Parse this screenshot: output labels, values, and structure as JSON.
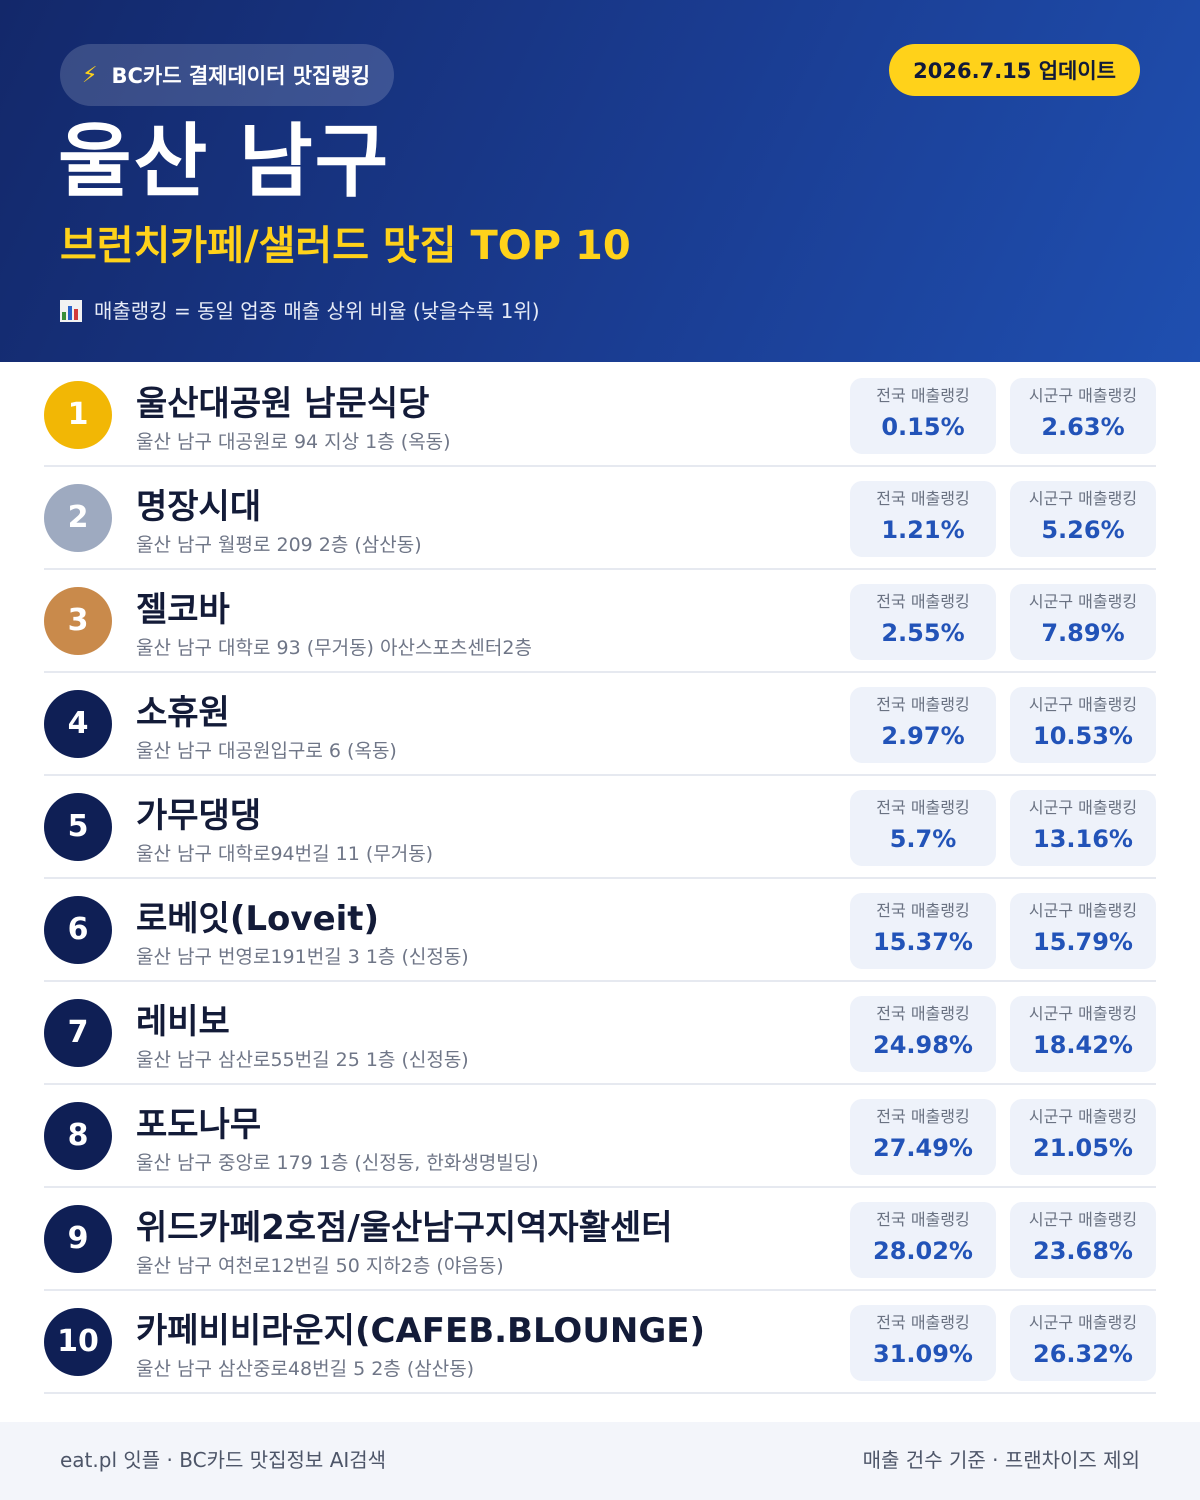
{
  "header": {
    "badge": "BC카드 결제데이터 맛집랭킹",
    "update": "2026.7.15 업데이트",
    "city": "울산 남구",
    "subtitle": "브런치카페/샐러드 맛집 TOP 10",
    "note": "매출랭킹 = 동일 업종 매출 상위 비율 (낮을수록 1위)",
    "badge_icon": "lightning-icon",
    "note_icon": "bar-chart-icon"
  },
  "labels": {
    "national": "전국 매출랭킹",
    "district": "시군구 매출랭킹"
  },
  "colors": {
    "header_start": "#13286a",
    "header_end": "#1f4fb0",
    "accent_yellow": "#ffd21a",
    "rank_gold": "#f2b705",
    "rank_silver": "#9eaac0",
    "rank_bronze": "#c98a4b",
    "rank_default": "#0f1f55",
    "stat_value": "#2253b8"
  },
  "restaurants": [
    {
      "rank": "1",
      "name": "울산대공원 남문식당",
      "address": "울산 남구 대공원로 94 지상 1층 (옥동)",
      "national": "0.15%",
      "district": "2.63%",
      "badge_color": "#f2b705"
    },
    {
      "rank": "2",
      "name": "명장시대",
      "address": "울산 남구 월평로 209 2층 (삼산동)",
      "national": "1.21%",
      "district": "5.26%",
      "badge_color": "#9eaac0"
    },
    {
      "rank": "3",
      "name": "젤코바",
      "address": "울산 남구 대학로 93 (무거동) 아산스포츠센터2층",
      "national": "2.55%",
      "district": "7.89%",
      "badge_color": "#c98a4b"
    },
    {
      "rank": "4",
      "name": "소휴원",
      "address": "울산 남구 대공원입구로 6 (옥동)",
      "national": "2.97%",
      "district": "10.53%",
      "badge_color": "#0f1f55"
    },
    {
      "rank": "5",
      "name": "가무댕댕",
      "address": "울산 남구 대학로94번길 11 (무거동)",
      "national": "5.7%",
      "district": "13.16%",
      "badge_color": "#0f1f55"
    },
    {
      "rank": "6",
      "name": "로베잇(Loveit)",
      "address": "울산 남구 번영로191번길 3 1층 (신정동)",
      "national": "15.37%",
      "district": "15.79%",
      "badge_color": "#0f1f55"
    },
    {
      "rank": "7",
      "name": "레비보",
      "address": "울산 남구 삼산로55번길 25 1층 (신정동)",
      "national": "24.98%",
      "district": "18.42%",
      "badge_color": "#0f1f55"
    },
    {
      "rank": "8",
      "name": "포도나무",
      "address": "울산 남구 중앙로 179 1층 (신정동, 한화생명빌딩)",
      "national": "27.49%",
      "district": "21.05%",
      "badge_color": "#0f1f55"
    },
    {
      "rank": "9",
      "name": "위드카페2호점/울산남구지역자활센터",
      "address": "울산 남구 여천로12번길 50 지하2층 (야음동)",
      "national": "28.02%",
      "district": "23.68%",
      "badge_color": "#0f1f55"
    },
    {
      "rank": "10",
      "name": "카페비비라운지(CAFEB.BLOUNGE)",
      "address": "울산 남구 삼산중로48번길 5 2층 (삼산동)",
      "national": "31.09%",
      "district": "26.32%",
      "badge_color": "#0f1f55"
    }
  ],
  "footer": {
    "left": "eat.pl 잇플 · BC카드 맛집정보 AI검색",
    "right": "매출 건수 기준 · 프랜차이즈 제외"
  }
}
